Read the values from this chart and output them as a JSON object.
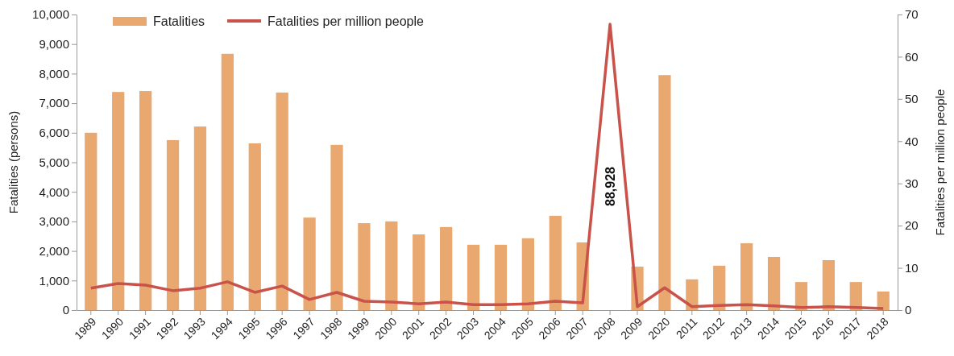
{
  "chart_data": {
    "type": "bar",
    "ylabel": "Fatalities (persons)",
    "y2label": "Fatalities per million people",
    "categories": [
      "1989",
      "1990",
      "1991",
      "1992",
      "1993",
      "1994",
      "1995",
      "1996",
      "1997",
      "1998",
      "1999",
      "2000",
      "2001",
      "2002",
      "2003",
      "2004",
      "2005",
      "2006",
      "2007",
      "2008",
      "2009",
      "2020",
      "2011",
      "2012",
      "2013",
      "2014",
      "2015",
      "2016",
      "2017",
      "2018"
    ],
    "series": [
      {
        "name": "Fatalities",
        "color": "#e8a86f",
        "values": [
          6000,
          7380,
          7410,
          5750,
          6210,
          8670,
          5640,
          7360,
          3130,
          5590,
          2940,
          3000,
          2560,
          2810,
          2210,
          2210,
          2430,
          3190,
          2290,
          null,
          1470,
          7950,
          1040,
          1500,
          2260,
          1800,
          950,
          1690,
          950,
          630
        ],
        "value_labels": [
          null,
          null,
          null,
          null,
          null,
          null,
          null,
          null,
          null,
          null,
          null,
          null,
          null,
          null,
          null,
          null,
          null,
          null,
          null,
          "88,928",
          null,
          null,
          null,
          null,
          null,
          null,
          null,
          null,
          null,
          null
        ]
      },
      {
        "name": "Fatalities per million people",
        "type": "line",
        "axis": "y2",
        "color": "#c9524a",
        "values": [
          5.2,
          6.3,
          5.9,
          4.6,
          5.2,
          6.7,
          4.2,
          5.7,
          2.5,
          4.2,
          2.1,
          1.9,
          1.5,
          1.9,
          1.3,
          1.3,
          1.5,
          2.1,
          1.7,
          67.7,
          0.8,
          5.3,
          0.8,
          1.1,
          1.3,
          1.0,
          0.6,
          0.8,
          0.6,
          0.4
        ]
      }
    ],
    "ylim": [
      0,
      10000
    ],
    "yticks": [
      0,
      {
        "value": 1000,
        "label": "1,000"
      },
      {
        "value": 2000,
        "label": "2,000"
      },
      {
        "value": 3000,
        "label": "3,000"
      },
      {
        "value": 4000,
        "label": "4,000"
      },
      {
        "value": 5000,
        "label": "5,000"
      },
      {
        "value": 6000,
        "label": "6,000"
      },
      {
        "value": 7000,
        "label": "7,000"
      },
      {
        "value": 8000,
        "label": "8,000"
      },
      {
        "value": 9000,
        "label": "9,000"
      },
      {
        "value": 10000,
        "label": "10,000"
      }
    ],
    "y2lim": [
      0,
      70
    ],
    "y2ticks": [
      0,
      10,
      20,
      30,
      40,
      50,
      60,
      70
    ],
    "legend": "top left",
    "grid": false,
    "marker": "none",
    "line_style": "solid"
  }
}
